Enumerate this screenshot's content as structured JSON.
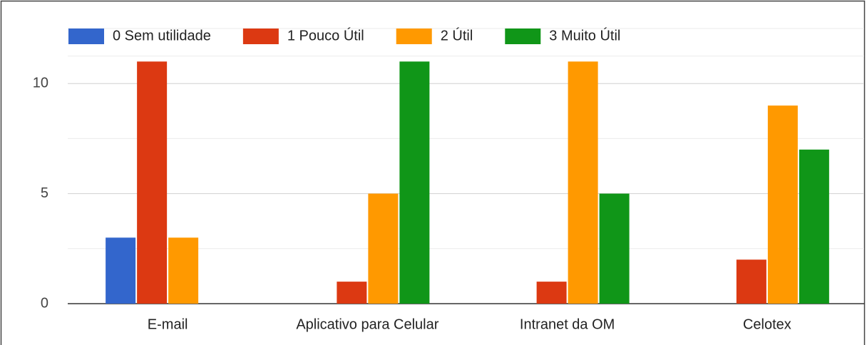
{
  "chart_data": {
    "type": "bar",
    "categories": [
      "E-mail",
      "Aplicativo para Celular",
      "Intranet da OM",
      "Celotex"
    ],
    "series": [
      {
        "name": "0 Sem utilidade",
        "color": "#3366cc",
        "values": [
          3,
          0,
          0,
          0
        ]
      },
      {
        "name": "1 Pouco Útil",
        "color": "#dc3912",
        "values": [
          11,
          1,
          1,
          2
        ]
      },
      {
        "name": "2 Útil",
        "color": "#ff9900",
        "values": [
          3,
          5,
          11,
          9
        ]
      },
      {
        "name": "3 Muito Útil",
        "color": "#109618",
        "values": [
          0,
          11,
          5,
          7
        ]
      }
    ],
    "ylim": [
      0,
      12.5
    ],
    "yticks": [
      0,
      5,
      10
    ],
    "grid": true,
    "legend": "top"
  }
}
